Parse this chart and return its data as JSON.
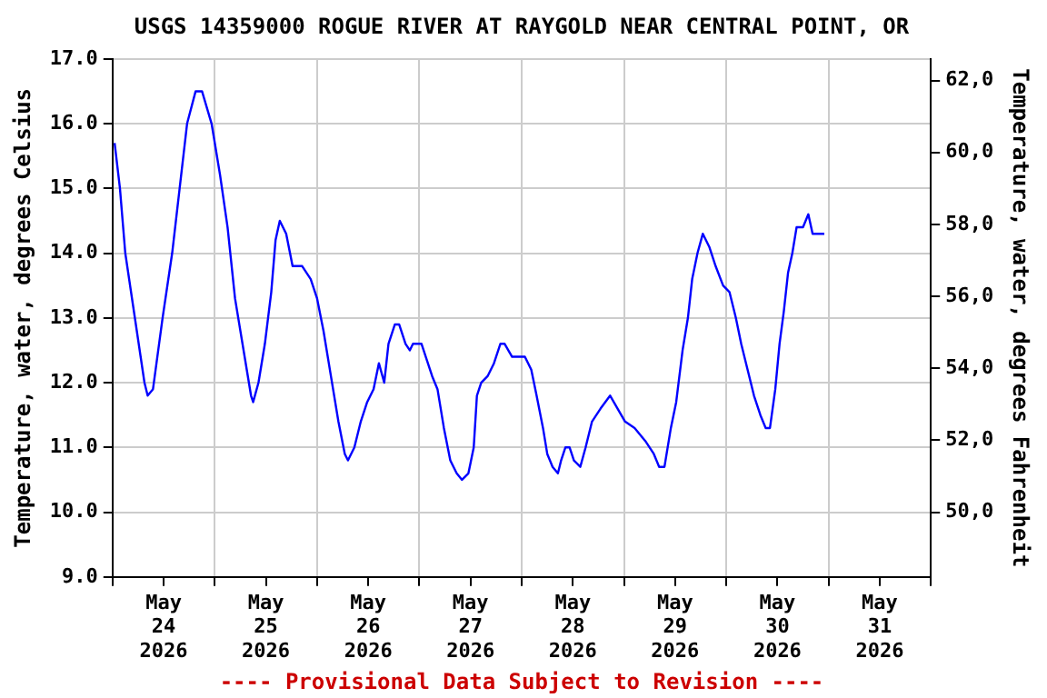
{
  "chart_data": {
    "type": "line",
    "title": "USGS 14359000 ROGUE RIVER AT RAYGOLD NEAR CENTRAL POINT, OR",
    "ylabel": "Temperature, water, degrees Celsius",
    "y2label": "Temperature, water, degrees Fahrenheit",
    "annotations": [
      "---- Provisional Data Subject to Revision ----"
    ],
    "x": [
      "2026-05-24T00:30",
      "2026-05-24T01:45",
      "2026-05-24T03:00",
      "2026-05-24T05:15",
      "2026-05-24T07:30",
      "2026-05-24T08:15",
      "2026-05-24T09:30",
      "2026-05-24T11:45",
      "2026-05-24T14:00",
      "2026-05-24T15:45",
      "2026-05-24T17:30",
      "2026-05-24T19:30",
      "2026-05-24T21:00",
      "2026-05-24T23:15",
      "2026-05-25T01:15",
      "2026-05-25T03:00",
      "2026-05-25T04:45",
      "2026-05-25T07:00",
      "2026-05-25T08:30",
      "2026-05-25T09:00",
      "2026-05-25T10:15",
      "2026-05-25T11:45",
      "2026-05-25T13:15",
      "2026-05-25T14:15",
      "2026-05-25T15:15",
      "2026-05-25T16:45",
      "2026-05-25T18:15",
      "2026-05-25T20:30",
      "2026-05-25T22:30",
      "2026-05-26T00:00",
      "2026-05-26T01:30",
      "2026-05-26T03:15",
      "2026-05-26T05:00",
      "2026-05-26T06:30",
      "2026-05-26T07:15",
      "2026-05-26T08:45",
      "2026-05-26T10:15",
      "2026-05-26T11:45",
      "2026-05-26T13:15",
      "2026-05-26T14:30",
      "2026-05-26T15:45",
      "2026-05-26T16:45",
      "2026-05-26T18:15",
      "2026-05-26T19:15",
      "2026-05-26T20:45",
      "2026-05-26T21:45",
      "2026-05-26T22:30",
      "2026-05-27T00:30",
      "2026-05-27T01:30",
      "2026-05-27T03:00",
      "2026-05-27T04:15",
      "2026-05-27T05:45",
      "2026-05-27T07:15",
      "2026-05-27T08:45",
      "2026-05-27T10:00",
      "2026-05-27T11:30",
      "2026-05-27T12:45",
      "2026-05-27T13:30",
      "2026-05-27T14:30",
      "2026-05-27T16:00",
      "2026-05-27T17:30",
      "2026-05-27T19:00",
      "2026-05-27T20:00",
      "2026-05-27T21:45",
      "2026-05-28T00:45",
      "2026-05-28T02:15",
      "2026-05-28T03:30",
      "2026-05-28T05:00",
      "2026-05-28T06:00",
      "2026-05-28T07:15",
      "2026-05-28T08:30",
      "2026-05-28T09:15",
      "2026-05-28T10:15",
      "2026-05-28T11:15",
      "2026-05-28T12:15",
      "2026-05-28T13:45",
      "2026-05-28T15:00",
      "2026-05-28T16:30",
      "2026-05-28T18:30",
      "2026-05-28T20:45",
      "2026-05-28T22:30",
      "2026-05-29T00:15",
      "2026-05-29T02:30",
      "2026-05-29T05:00",
      "2026-05-29T07:00",
      "2026-05-29T08:15",
      "2026-05-29T09:30",
      "2026-05-29T11:00",
      "2026-05-29T12:15",
      "2026-05-29T13:45",
      "2026-05-29T15:00",
      "2026-05-29T16:00",
      "2026-05-29T17:15",
      "2026-05-29T18:30",
      "2026-05-29T20:00",
      "2026-05-29T21:30",
      "2026-05-29T23:15",
      "2026-05-30T00:45",
      "2026-05-30T02:15",
      "2026-05-30T03:30",
      "2026-05-30T05:00",
      "2026-05-30T06:30",
      "2026-05-30T08:00",
      "2026-05-30T09:15",
      "2026-05-30T10:15",
      "2026-05-30T11:30",
      "2026-05-30T12:30",
      "2026-05-30T13:30",
      "2026-05-30T14:30",
      "2026-05-30T15:30",
      "2026-05-30T16:30",
      "2026-05-30T18:00",
      "2026-05-30T19:15",
      "2026-05-30T20:15",
      "2026-05-30T23:00"
    ],
    "series": [
      {
        "color": "#0000ff",
        "values": [
          15.7,
          15.0,
          14.0,
          13.0,
          12.0,
          11.8,
          11.9,
          13.0,
          14.0,
          15.0,
          16.0,
          16.5,
          16.5,
          16.0,
          15.2,
          14.4,
          13.3,
          12.4,
          11.8,
          11.7,
          12.0,
          12.6,
          13.4,
          14.2,
          14.5,
          14.3,
          13.8,
          13.8,
          13.6,
          13.3,
          12.8,
          12.1,
          11.4,
          10.9,
          10.8,
          11.0,
          11.4,
          11.7,
          11.9,
          12.3,
          12.0,
          12.6,
          12.9,
          12.9,
          12.6,
          12.5,
          12.6,
          12.6,
          12.4,
          12.1,
          11.9,
          11.3,
          10.8,
          10.6,
          10.5,
          10.6,
          11.0,
          11.8,
          12.0,
          12.1,
          12.3,
          12.6,
          12.6,
          12.4,
          12.4,
          12.2,
          11.8,
          11.3,
          10.9,
          10.7,
          10.6,
          10.8,
          11.0,
          11.0,
          10.8,
          10.7,
          11.0,
          11.4,
          11.6,
          11.8,
          11.6,
          11.4,
          11.3,
          11.1,
          10.9,
          10.7,
          10.7,
          11.3,
          11.7,
          12.5,
          13.0,
          13.6,
          14.0,
          14.3,
          14.1,
          13.8,
          13.5,
          13.4,
          13.0,
          12.6,
          12.2,
          11.8,
          11.5,
          11.3,
          11.3,
          11.9,
          12.6,
          13.1,
          13.7,
          14.0,
          14.4,
          14.4,
          14.6,
          14.3,
          14.3
        ]
      }
    ],
    "xlim": [
      "2026-05-24",
      "2026-06-01"
    ],
    "xticks": [
      {
        "value": "2026-05-24",
        "label": null
      },
      {
        "value": "2026-05-24T12:00",
        "label": "May\n24\n2026"
      },
      {
        "value": "2026-05-25",
        "label": null
      },
      {
        "value": "2026-05-25T12:00",
        "label": "May\n25\n2026"
      },
      {
        "value": "2026-05-26",
        "label": null
      },
      {
        "value": "2026-05-26T12:00",
        "label": "May\n26\n2026"
      },
      {
        "value": "2026-05-27",
        "label": null
      },
      {
        "value": "2026-05-27T12:00",
        "label": "May\n27\n2026"
      },
      {
        "value": "2026-05-28",
        "label": null
      },
      {
        "value": "2026-05-28T12:00",
        "label": "May\n28\n2026"
      },
      {
        "value": "2026-05-29",
        "label": null
      },
      {
        "value": "2026-05-29T12:00",
        "label": "May\n29\n2026"
      },
      {
        "value": "2026-05-30",
        "label": null
      },
      {
        "value": "2026-05-30T12:00",
        "label": "May\n30\n2026"
      },
      {
        "value": "2026-05-31",
        "label": null
      },
      {
        "value": "2026-05-31T12:00",
        "label": "May\n31\n2026"
      },
      {
        "value": "2026-06-01",
        "label": null
      }
    ],
    "ylim": [
      9,
      17
    ],
    "yticks": [
      {
        "value": 9,
        "label": "9.0"
      },
      {
        "value": 10,
        "label": "10.0"
      },
      {
        "value": 11,
        "label": "11.0"
      },
      {
        "value": 12,
        "label": "12.0"
      },
      {
        "value": 13,
        "label": "13.0"
      },
      {
        "value": 14,
        "label": "14.0"
      },
      {
        "value": 15,
        "label": "15.0"
      },
      {
        "value": 16,
        "label": "16.0"
      },
      {
        "value": 17,
        "label": "17.0"
      }
    ],
    "y2lim": [
      48.2,
      62.6
    ],
    "y2ticks": [
      {
        "value": 50,
        "label": "50,0"
      },
      {
        "value": 52,
        "label": "52,0"
      },
      {
        "value": 54,
        "label": "54,0"
      },
      {
        "value": 56,
        "label": "56,0"
      },
      {
        "value": 58,
        "label": "58,0"
      },
      {
        "value": 60,
        "label": "60,0"
      },
      {
        "value": 62,
        "label": "62,0"
      }
    ],
    "grid": true,
    "legend": false,
    "marker": "none",
    "line_style": "solid"
  }
}
